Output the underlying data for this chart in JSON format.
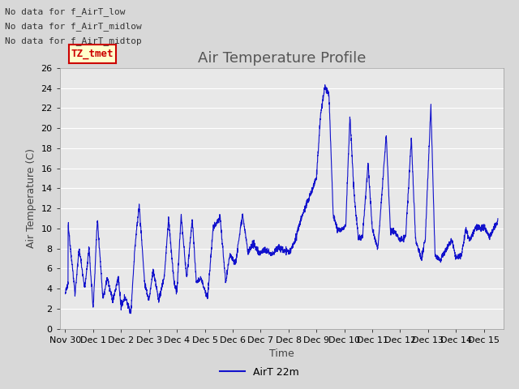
{
  "title": "Air Temperature Profile",
  "xlabel": "Time",
  "ylabel": "Air Temperature (C)",
  "ylim": [
    0,
    26
  ],
  "yticks": [
    0,
    2,
    4,
    6,
    8,
    10,
    12,
    14,
    16,
    18,
    20,
    22,
    24,
    26
  ],
  "legend_label": "AirT 22m",
  "line_color": "#1111cc",
  "background_color": "#d8d8d8",
  "plot_bg_color": "#e8e8e8",
  "grid_color": "#ffffff",
  "no_data_texts": [
    "No data for f_AirT_low",
    "No data for f_AirT_midlow",
    "No data for f_AirT_midtop"
  ],
  "tooltip_text": "TZ_tmet",
  "xtick_labels": [
    "Nov 30",
    "Dec 1",
    "Dec 2",
    "Dec 3",
    "Dec 4",
    "Dec 5",
    "Dec 6",
    "Dec 7",
    "Dec 8",
    "Dec 9",
    "Dec 10",
    "Dec 11",
    "Dec 12",
    "Dec 13",
    "Dec 14",
    "Dec 15"
  ],
  "title_fontsize": 13,
  "axis_fontsize": 9,
  "tick_fontsize": 8,
  "no_data_fontsize": 8,
  "tooltip_fontsize": 9
}
